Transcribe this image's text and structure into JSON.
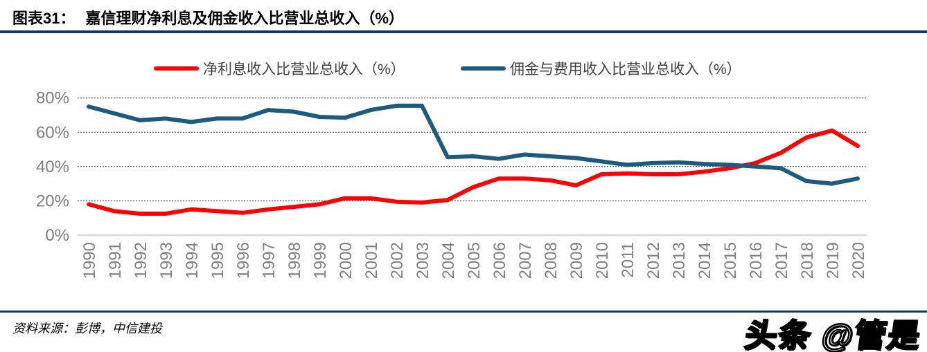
{
  "header": {
    "label": "图表31：",
    "title": "嘉信理财净利息及佣金收入比营业总收入（%）"
  },
  "chart_data": {
    "type": "line",
    "title": "嘉信理财净利息及佣金收入比营业总收入（%）",
    "x": [
      1990,
      1991,
      1992,
      1993,
      1994,
      1995,
      1996,
      1997,
      1998,
      1999,
      2000,
      2001,
      2002,
      2003,
      2004,
      2005,
      2006,
      2007,
      2008,
      2009,
      2010,
      2011,
      2012,
      2013,
      2014,
      2015,
      2016,
      2017,
      2018,
      2019,
      2020
    ],
    "series": [
      {
        "name": "净利息收入比营业总收入（%）",
        "color": "#fe0000",
        "values": [
          18,
          14,
          12.5,
          12.5,
          15,
          14,
          13,
          15,
          16.5,
          18,
          21.5,
          21.5,
          19.5,
          19,
          20.5,
          28,
          33,
          33,
          32,
          29,
          35.5,
          36,
          35.5,
          35.5,
          37,
          39,
          42,
          48,
          57,
          61,
          52
        ]
      },
      {
        "name": "佣金与费用收入比营业总收入（%）",
        "color": "#1c5a80",
        "values": [
          75,
          71,
          67,
          68,
          66,
          68,
          68,
          73,
          72,
          69,
          68.5,
          73,
          75.5,
          75.5,
          45.5,
          46,
          44.5,
          47,
          46,
          45,
          43,
          41,
          42,
          42.5,
          41.5,
          41,
          40,
          39,
          31.5,
          30,
          33
        ]
      }
    ],
    "ylim": [
      0,
      80
    ],
    "yticks": [
      "0%",
      "20%",
      "40%",
      "60%",
      "80%"
    ],
    "ytick_values": [
      0,
      20,
      40,
      60,
      80
    ],
    "grid": "horizontal-dotted",
    "legend_position": "top"
  },
  "footer": {
    "source": "资料来源：彭博，中信建投",
    "watermark": "头条 @管是"
  },
  "colors": {
    "accent_navy": "#17375e",
    "series_red": "#fe0000",
    "series_blue": "#1c5a80",
    "tick_gray": "#7f7f7f",
    "zero_axis_gray": "#d9d9d9",
    "grid_dot": "#262626",
    "legend_text": "#3f3f3f"
  }
}
